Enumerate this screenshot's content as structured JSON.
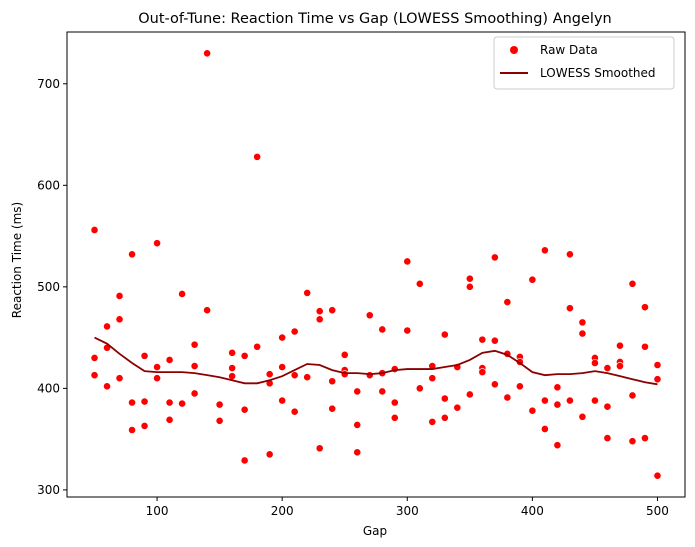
{
  "chart_data": {
    "type": "scatter",
    "title": "Out-of-Tune: Reaction Time vs Gap (LOWESS Smoothing) Angelyn",
    "xlabel": "Gap",
    "ylabel": "Reaction Time (ms)",
    "xlim": [
      28,
      522
    ],
    "ylim": [
      293,
      751
    ],
    "xticks": [
      100,
      200,
      300,
      400,
      500
    ],
    "yticks": [
      300,
      400,
      500,
      600,
      700
    ],
    "grid": false,
    "legend_position": "top-right",
    "colors": {
      "raw": "#ff0000",
      "smoothed": "#8b0000"
    },
    "series": [
      {
        "name": "Raw Data",
        "type": "scatter",
        "points": [
          [
            50,
            556
          ],
          [
            50,
            430
          ],
          [
            50,
            413
          ],
          [
            60,
            461
          ],
          [
            60,
            440
          ],
          [
            60,
            402
          ],
          [
            70,
            491
          ],
          [
            70,
            468
          ],
          [
            70,
            410
          ],
          [
            80,
            532
          ],
          [
            80,
            386
          ],
          [
            80,
            359
          ],
          [
            90,
            432
          ],
          [
            90,
            387
          ],
          [
            90,
            363
          ],
          [
            100,
            543
          ],
          [
            100,
            421
          ],
          [
            100,
            410
          ],
          [
            110,
            428
          ],
          [
            110,
            386
          ],
          [
            110,
            369
          ],
          [
            120,
            493
          ],
          [
            120,
            385
          ],
          [
            130,
            443
          ],
          [
            130,
            422
          ],
          [
            130,
            395
          ],
          [
            140,
            730
          ],
          [
            140,
            477
          ],
          [
            150,
            384
          ],
          [
            150,
            368
          ],
          [
            160,
            435
          ],
          [
            160,
            420
          ],
          [
            160,
            412
          ],
          [
            170,
            432
          ],
          [
            170,
            379
          ],
          [
            170,
            329
          ],
          [
            180,
            628
          ],
          [
            180,
            441
          ],
          [
            190,
            414
          ],
          [
            190,
            405
          ],
          [
            190,
            335
          ],
          [
            200,
            450
          ],
          [
            200,
            421
          ],
          [
            200,
            388
          ],
          [
            210,
            456
          ],
          [
            210,
            413
          ],
          [
            210,
            377
          ],
          [
            220,
            494
          ],
          [
            220,
            411
          ],
          [
            230,
            476
          ],
          [
            230,
            468
          ],
          [
            230,
            341
          ],
          [
            240,
            477
          ],
          [
            240,
            407
          ],
          [
            240,
            380
          ],
          [
            250,
            433
          ],
          [
            250,
            418
          ],
          [
            250,
            414
          ],
          [
            260,
            397
          ],
          [
            260,
            364
          ],
          [
            260,
            337
          ],
          [
            270,
            472
          ],
          [
            270,
            413
          ],
          [
            280,
            458
          ],
          [
            280,
            415
          ],
          [
            280,
            397
          ],
          [
            290,
            419
          ],
          [
            290,
            386
          ],
          [
            290,
            371
          ],
          [
            300,
            525
          ],
          [
            300,
            457
          ],
          [
            310,
            503
          ],
          [
            310,
            400
          ],
          [
            320,
            422
          ],
          [
            320,
            410
          ],
          [
            320,
            367
          ],
          [
            330,
            453
          ],
          [
            330,
            390
          ],
          [
            330,
            371
          ],
          [
            340,
            421
          ],
          [
            340,
            381
          ],
          [
            350,
            508
          ],
          [
            350,
            500
          ],
          [
            350,
            394
          ],
          [
            360,
            448
          ],
          [
            360,
            420
          ],
          [
            360,
            416
          ],
          [
            370,
            529
          ],
          [
            370,
            447
          ],
          [
            370,
            404
          ],
          [
            380,
            485
          ],
          [
            380,
            434
          ],
          [
            380,
            391
          ],
          [
            390,
            431
          ],
          [
            390,
            426
          ],
          [
            390,
            402
          ],
          [
            400,
            507
          ],
          [
            400,
            378
          ],
          [
            410,
            536
          ],
          [
            410,
            388
          ],
          [
            410,
            360
          ],
          [
            420,
            401
          ],
          [
            420,
            384
          ],
          [
            420,
            344
          ],
          [
            430,
            532
          ],
          [
            430,
            479
          ],
          [
            430,
            388
          ],
          [
            440,
            465
          ],
          [
            440,
            454
          ],
          [
            440,
            372
          ],
          [
            450,
            430
          ],
          [
            450,
            425
          ],
          [
            450,
            388
          ],
          [
            460,
            420
          ],
          [
            460,
            382
          ],
          [
            460,
            351
          ],
          [
            470,
            442
          ],
          [
            470,
            426
          ],
          [
            470,
            422
          ],
          [
            480,
            503
          ],
          [
            480,
            393
          ],
          [
            480,
            348
          ],
          [
            490,
            480
          ],
          [
            490,
            441
          ],
          [
            490,
            351
          ],
          [
            500,
            423
          ],
          [
            500,
            409
          ],
          [
            500,
            314
          ]
        ]
      },
      {
        "name": "LOWESS Smoothed",
        "type": "line",
        "points": [
          [
            50,
            450
          ],
          [
            60,
            444
          ],
          [
            70,
            434
          ],
          [
            80,
            425
          ],
          [
            90,
            417
          ],
          [
            100,
            416
          ],
          [
            110,
            416
          ],
          [
            120,
            416
          ],
          [
            130,
            415
          ],
          [
            140,
            413
          ],
          [
            150,
            411
          ],
          [
            160,
            408
          ],
          [
            170,
            405
          ],
          [
            180,
            405
          ],
          [
            190,
            408
          ],
          [
            200,
            412
          ],
          [
            210,
            418
          ],
          [
            220,
            424
          ],
          [
            230,
            423
          ],
          [
            240,
            418
          ],
          [
            250,
            415
          ],
          [
            260,
            415
          ],
          [
            270,
            414
          ],
          [
            280,
            415
          ],
          [
            290,
            418
          ],
          [
            300,
            419
          ],
          [
            310,
            419
          ],
          [
            320,
            419
          ],
          [
            330,
            421
          ],
          [
            340,
            423
          ],
          [
            350,
            428
          ],
          [
            360,
            435
          ],
          [
            370,
            437
          ],
          [
            380,
            433
          ],
          [
            390,
            425
          ],
          [
            400,
            416
          ],
          [
            410,
            413
          ],
          [
            420,
            414
          ],
          [
            430,
            414
          ],
          [
            440,
            415
          ],
          [
            450,
            417
          ],
          [
            460,
            415
          ],
          [
            470,
            412
          ],
          [
            480,
            409
          ],
          [
            490,
            406
          ],
          [
            500,
            404
          ]
        ]
      }
    ]
  }
}
